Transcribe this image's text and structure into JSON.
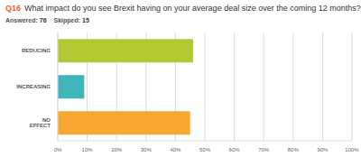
{
  "chart_data": {
    "type": "bar",
    "title": "What impact do you see Brexit having on your average deal size over the coming 12 months?",
    "annotations": [
      "Q16",
      "Answered: 76",
      "Skipped: 15"
    ],
    "categories": [
      "REDUCING",
      "INCREASING",
      "NO EFFECT"
    ],
    "values": [
      46,
      9,
      45
    ],
    "colors": [
      "#b4c834",
      "#3eb5bb",
      "#f6a830"
    ],
    "orientation": "horizontal",
    "xlim": [
      0,
      100
    ],
    "xticks": [
      {
        "value": 0,
        "label": "0%"
      },
      {
        "value": 10,
        "label": "10%"
      },
      {
        "value": 20,
        "label": "20%"
      },
      {
        "value": 30,
        "label": "30%"
      },
      {
        "value": 40,
        "label": "40%"
      },
      {
        "value": 50,
        "label": "50%"
      },
      {
        "value": 60,
        "label": "60%"
      },
      {
        "value": 70,
        "label": "70%"
      },
      {
        "value": 80,
        "label": "80%"
      },
      {
        "value": 90,
        "label": "90%"
      },
      {
        "value": 100,
        "label": "100%"
      }
    ],
    "grid": true
  }
}
